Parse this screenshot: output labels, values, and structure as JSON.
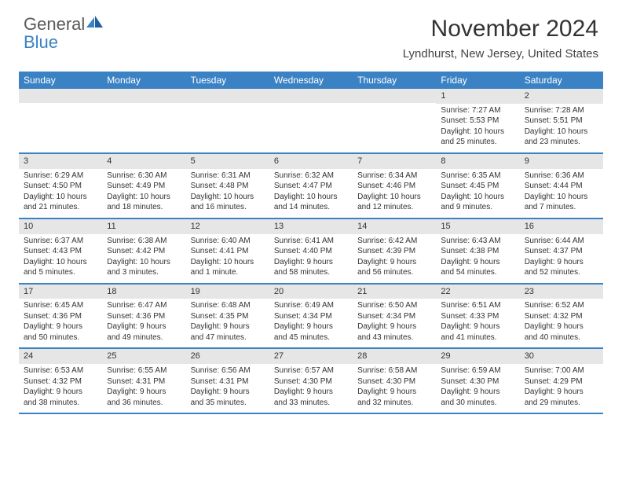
{
  "brand": {
    "word1": "General",
    "word2": "Blue",
    "icon_color": "#3b82c4"
  },
  "title": "November 2024",
  "location": "Lyndhurst, New Jersey, United States",
  "header_bg": "#3b82c4",
  "header_text_color": "#ffffff",
  "daynum_bg": "#e6e6e6",
  "row_border_color": "#3b82c4",
  "columns": [
    "Sunday",
    "Monday",
    "Tuesday",
    "Wednesday",
    "Thursday",
    "Friday",
    "Saturday"
  ],
  "weeks": [
    [
      null,
      null,
      null,
      null,
      null,
      {
        "n": "1",
        "sr": "Sunrise: 7:27 AM",
        "ss": "Sunset: 5:53 PM",
        "dl": "Daylight: 10 hours and 25 minutes."
      },
      {
        "n": "2",
        "sr": "Sunrise: 7:28 AM",
        "ss": "Sunset: 5:51 PM",
        "dl": "Daylight: 10 hours and 23 minutes."
      }
    ],
    [
      {
        "n": "3",
        "sr": "Sunrise: 6:29 AM",
        "ss": "Sunset: 4:50 PM",
        "dl": "Daylight: 10 hours and 21 minutes."
      },
      {
        "n": "4",
        "sr": "Sunrise: 6:30 AM",
        "ss": "Sunset: 4:49 PM",
        "dl": "Daylight: 10 hours and 18 minutes."
      },
      {
        "n": "5",
        "sr": "Sunrise: 6:31 AM",
        "ss": "Sunset: 4:48 PM",
        "dl": "Daylight: 10 hours and 16 minutes."
      },
      {
        "n": "6",
        "sr": "Sunrise: 6:32 AM",
        "ss": "Sunset: 4:47 PM",
        "dl": "Daylight: 10 hours and 14 minutes."
      },
      {
        "n": "7",
        "sr": "Sunrise: 6:34 AM",
        "ss": "Sunset: 4:46 PM",
        "dl": "Daylight: 10 hours and 12 minutes."
      },
      {
        "n": "8",
        "sr": "Sunrise: 6:35 AM",
        "ss": "Sunset: 4:45 PM",
        "dl": "Daylight: 10 hours and 9 minutes."
      },
      {
        "n": "9",
        "sr": "Sunrise: 6:36 AM",
        "ss": "Sunset: 4:44 PM",
        "dl": "Daylight: 10 hours and 7 minutes."
      }
    ],
    [
      {
        "n": "10",
        "sr": "Sunrise: 6:37 AM",
        "ss": "Sunset: 4:43 PM",
        "dl": "Daylight: 10 hours and 5 minutes."
      },
      {
        "n": "11",
        "sr": "Sunrise: 6:38 AM",
        "ss": "Sunset: 4:42 PM",
        "dl": "Daylight: 10 hours and 3 minutes."
      },
      {
        "n": "12",
        "sr": "Sunrise: 6:40 AM",
        "ss": "Sunset: 4:41 PM",
        "dl": "Daylight: 10 hours and 1 minute."
      },
      {
        "n": "13",
        "sr": "Sunrise: 6:41 AM",
        "ss": "Sunset: 4:40 PM",
        "dl": "Daylight: 9 hours and 58 minutes."
      },
      {
        "n": "14",
        "sr": "Sunrise: 6:42 AM",
        "ss": "Sunset: 4:39 PM",
        "dl": "Daylight: 9 hours and 56 minutes."
      },
      {
        "n": "15",
        "sr": "Sunrise: 6:43 AM",
        "ss": "Sunset: 4:38 PM",
        "dl": "Daylight: 9 hours and 54 minutes."
      },
      {
        "n": "16",
        "sr": "Sunrise: 6:44 AM",
        "ss": "Sunset: 4:37 PM",
        "dl": "Daylight: 9 hours and 52 minutes."
      }
    ],
    [
      {
        "n": "17",
        "sr": "Sunrise: 6:45 AM",
        "ss": "Sunset: 4:36 PM",
        "dl": "Daylight: 9 hours and 50 minutes."
      },
      {
        "n": "18",
        "sr": "Sunrise: 6:47 AM",
        "ss": "Sunset: 4:36 PM",
        "dl": "Daylight: 9 hours and 49 minutes."
      },
      {
        "n": "19",
        "sr": "Sunrise: 6:48 AM",
        "ss": "Sunset: 4:35 PM",
        "dl": "Daylight: 9 hours and 47 minutes."
      },
      {
        "n": "20",
        "sr": "Sunrise: 6:49 AM",
        "ss": "Sunset: 4:34 PM",
        "dl": "Daylight: 9 hours and 45 minutes."
      },
      {
        "n": "21",
        "sr": "Sunrise: 6:50 AM",
        "ss": "Sunset: 4:34 PM",
        "dl": "Daylight: 9 hours and 43 minutes."
      },
      {
        "n": "22",
        "sr": "Sunrise: 6:51 AM",
        "ss": "Sunset: 4:33 PM",
        "dl": "Daylight: 9 hours and 41 minutes."
      },
      {
        "n": "23",
        "sr": "Sunrise: 6:52 AM",
        "ss": "Sunset: 4:32 PM",
        "dl": "Daylight: 9 hours and 40 minutes."
      }
    ],
    [
      {
        "n": "24",
        "sr": "Sunrise: 6:53 AM",
        "ss": "Sunset: 4:32 PM",
        "dl": "Daylight: 9 hours and 38 minutes."
      },
      {
        "n": "25",
        "sr": "Sunrise: 6:55 AM",
        "ss": "Sunset: 4:31 PM",
        "dl": "Daylight: 9 hours and 36 minutes."
      },
      {
        "n": "26",
        "sr": "Sunrise: 6:56 AM",
        "ss": "Sunset: 4:31 PM",
        "dl": "Daylight: 9 hours and 35 minutes."
      },
      {
        "n": "27",
        "sr": "Sunrise: 6:57 AM",
        "ss": "Sunset: 4:30 PM",
        "dl": "Daylight: 9 hours and 33 minutes."
      },
      {
        "n": "28",
        "sr": "Sunrise: 6:58 AM",
        "ss": "Sunset: 4:30 PM",
        "dl": "Daylight: 9 hours and 32 minutes."
      },
      {
        "n": "29",
        "sr": "Sunrise: 6:59 AM",
        "ss": "Sunset: 4:30 PM",
        "dl": "Daylight: 9 hours and 30 minutes."
      },
      {
        "n": "30",
        "sr": "Sunrise: 7:00 AM",
        "ss": "Sunset: 4:29 PM",
        "dl": "Daylight: 9 hours and 29 minutes."
      }
    ]
  ]
}
